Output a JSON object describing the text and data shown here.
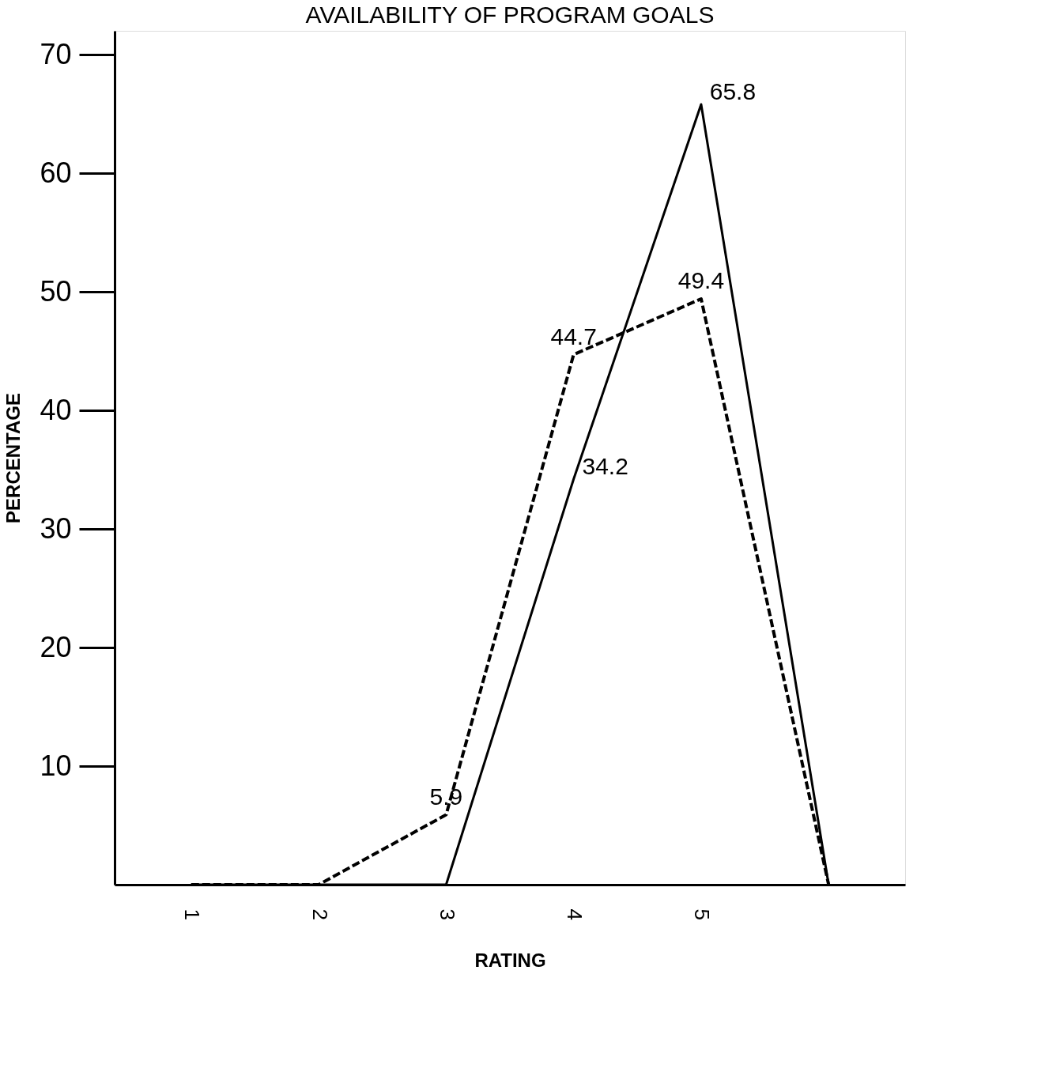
{
  "chart_data": {
    "type": "line",
    "title": "AVAILABILITY OF PROGRAM GOALS",
    "xlabel": "RATING",
    "ylabel": "PERCENTAGE",
    "categories": [
      "1",
      "2",
      "3",
      "4",
      "5",
      null
    ],
    "series": [
      {
        "color": "#000000",
        "line_style": "solid",
        "values": [
          0,
          0,
          0,
          34.2,
          65.8,
          0
        ],
        "value_labels": [
          null,
          null,
          null,
          "34.2",
          "65.8",
          null
        ]
      },
      {
        "color": "#000000",
        "line_style": "dashed",
        "values": [
          0,
          0,
          5.9,
          44.7,
          49.4,
          0
        ],
        "value_labels": [
          null,
          null,
          "5.9",
          "44.7",
          "49.4",
          null
        ]
      }
    ],
    "ylim": [
      0,
      72
    ],
    "yticks": [
      10,
      20,
      30,
      40,
      50,
      60,
      70
    ],
    "grid": false,
    "marker": "none"
  }
}
